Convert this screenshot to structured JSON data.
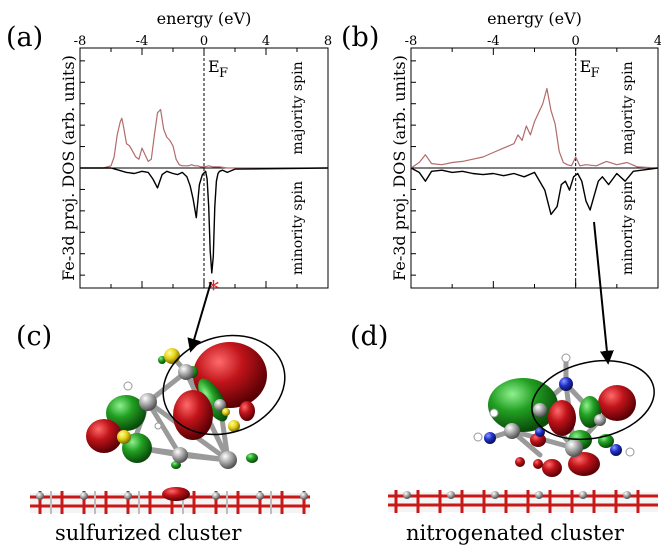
{
  "figure": {
    "panel_labels": [
      "(a)",
      "(b)",
      "(c)",
      "(d)"
    ],
    "ef_label": "E",
    "ef_subscript": "F",
    "marker": "*",
    "captions": {
      "c": "sulfurized cluster",
      "d": "nitrogenated cluster"
    }
  },
  "colors": {
    "majority": "#b36b6b",
    "minority": "#000000",
    "marker": "#e02020",
    "lobe_red": "#c0141a",
    "lobe_green": "#22a022",
    "sulfur": "#e6d21a",
    "nitrogen": "#1f2fc8"
  },
  "chart_data": [
    {
      "type": "line",
      "panel": "a",
      "xlabel": "energy (eV)",
      "ylabel": "Fe-3d proj. DOS (arb. units)",
      "xlim": [
        -8,
        8
      ],
      "xticks": [
        -8,
        -4,
        0,
        4,
        8
      ],
      "xtick_labels": [
        "-8",
        "-4",
        "0",
        "4",
        "8"
      ],
      "ylim": [
        -1,
        1
      ],
      "fermi_level": 0,
      "series": [
        {
          "name": "majority spin",
          "x": [
            -8,
            -6.5,
            -6,
            -5.8,
            -5.6,
            -5.4,
            -5.3,
            -5.2,
            -5.0,
            -4.8,
            -4.6,
            -4.4,
            -4.2,
            -4.0,
            -3.8,
            -3.6,
            -3.4,
            -3.2,
            -3.0,
            -2.8,
            -2.6,
            -2.4,
            -2.2,
            -2.0,
            -1.8,
            -1.6,
            -1.4,
            -1.2,
            -1.0,
            -0.8,
            -0.6,
            -0.4,
            -0.2,
            0,
            0.3,
            0.6,
            1.0,
            1.5,
            8
          ],
          "values": [
            0,
            0,
            0.02,
            0.1,
            0.3,
            0.42,
            0.45,
            0.38,
            0.22,
            0.2,
            0.15,
            0.1,
            0.08,
            0.18,
            0.12,
            0.06,
            0.08,
            0.3,
            0.5,
            0.53,
            0.35,
            0.28,
            0.25,
            0.2,
            0.08,
            0.03,
            0.02,
            0.02,
            0.02,
            0.03,
            0.02,
            0.02,
            0.01,
            0.01,
            0.02,
            0.01,
            0.01,
            0,
            0
          ]
        },
        {
          "name": "minority spin",
          "x": [
            -8,
            -6,
            -5.5,
            -5.0,
            -4.5,
            -4.0,
            -3.6,
            -3.3,
            -3.0,
            -2.7,
            -2.4,
            -2.0,
            -1.7,
            -1.4,
            -1.1,
            -0.9,
            -0.7,
            -0.5,
            -0.3,
            -0.1,
            0.1,
            0.2,
            0.3,
            0.4,
            0.5,
            0.6,
            0.7,
            0.8,
            0.9,
            1.0,
            1.2,
            1.5,
            2.0,
            8
          ],
          "values": [
            0,
            0,
            -0.02,
            -0.04,
            -0.05,
            -0.03,
            -0.04,
            -0.1,
            -0.18,
            -0.06,
            -0.03,
            -0.05,
            -0.06,
            -0.04,
            -0.08,
            -0.16,
            -0.28,
            -0.45,
            -0.15,
            -0.06,
            -0.03,
            -0.1,
            -0.35,
            -0.75,
            -0.95,
            -0.8,
            -0.35,
            -0.12,
            -0.05,
            -0.03,
            -0.02,
            -0.04,
            -0.01,
            0
          ]
        }
      ],
      "annotations": [
        "majority spin",
        "minority spin"
      ]
    },
    {
      "type": "line",
      "panel": "b",
      "xlabel": "energy (eV)",
      "ylabel": "Fe-3d proj. DOS (arb. units)",
      "xlim": [
        -8,
        4
      ],
      "xticks": [
        -8,
        -4,
        0,
        4
      ],
      "xtick_labels": [
        "-8",
        "-4",
        "0",
        "4"
      ],
      "ylim": [
        -1,
        1
      ],
      "fermi_level": 0,
      "series": [
        {
          "name": "majority spin",
          "x": [
            -8,
            -7.6,
            -7.3,
            -7.0,
            -6.5,
            -6.0,
            -5.5,
            -5.0,
            -4.5,
            -4.0,
            -3.5,
            -3.0,
            -2.8,
            -2.6,
            -2.4,
            -2.2,
            -2.0,
            -1.8,
            -1.6,
            -1.4,
            -1.2,
            -1.0,
            -0.8,
            -0.6,
            -0.4,
            -0.2,
            0,
            0.2,
            0.5,
            1.0,
            1.5,
            2.0,
            2.5,
            3.0,
            4
          ],
          "values": [
            0,
            0.05,
            0.12,
            0.04,
            0.03,
            0.05,
            0.06,
            0.08,
            0.1,
            0.14,
            0.18,
            0.22,
            0.3,
            0.25,
            0.38,
            0.3,
            0.42,
            0.5,
            0.58,
            0.72,
            0.52,
            0.4,
            0.15,
            0.05,
            0.03,
            0.02,
            0.1,
            0.02,
            0.03,
            0.02,
            0.06,
            0.03,
            0.05,
            0.01,
            0
          ]
        },
        {
          "name": "minority spin",
          "x": [
            -8,
            -7.6,
            -7.3,
            -7.0,
            -6.5,
            -6.0,
            -5.5,
            -5.0,
            -4.5,
            -4.0,
            -3.5,
            -3.0,
            -2.5,
            -2.0,
            -1.5,
            -1.2,
            -0.9,
            -0.7,
            -0.5,
            -0.3,
            -0.1,
            0.1,
            0.3,
            0.5,
            0.7,
            0.9,
            1.1,
            1.3,
            1.6,
            2.0,
            2.4,
            2.8,
            3.2,
            4
          ],
          "values": [
            0,
            -0.04,
            -0.12,
            -0.03,
            -0.02,
            -0.04,
            -0.03,
            -0.05,
            -0.06,
            -0.05,
            -0.07,
            -0.05,
            -0.08,
            -0.04,
            -0.2,
            -0.42,
            -0.35,
            -0.15,
            -0.12,
            -0.2,
            -0.08,
            -0.05,
            -0.12,
            -0.3,
            -0.38,
            -0.25,
            -0.12,
            -0.08,
            -0.15,
            -0.05,
            -0.12,
            -0.03,
            -0.02,
            0
          ]
        }
      ],
      "annotations": [
        "majority spin",
        "minority spin"
      ]
    }
  ]
}
